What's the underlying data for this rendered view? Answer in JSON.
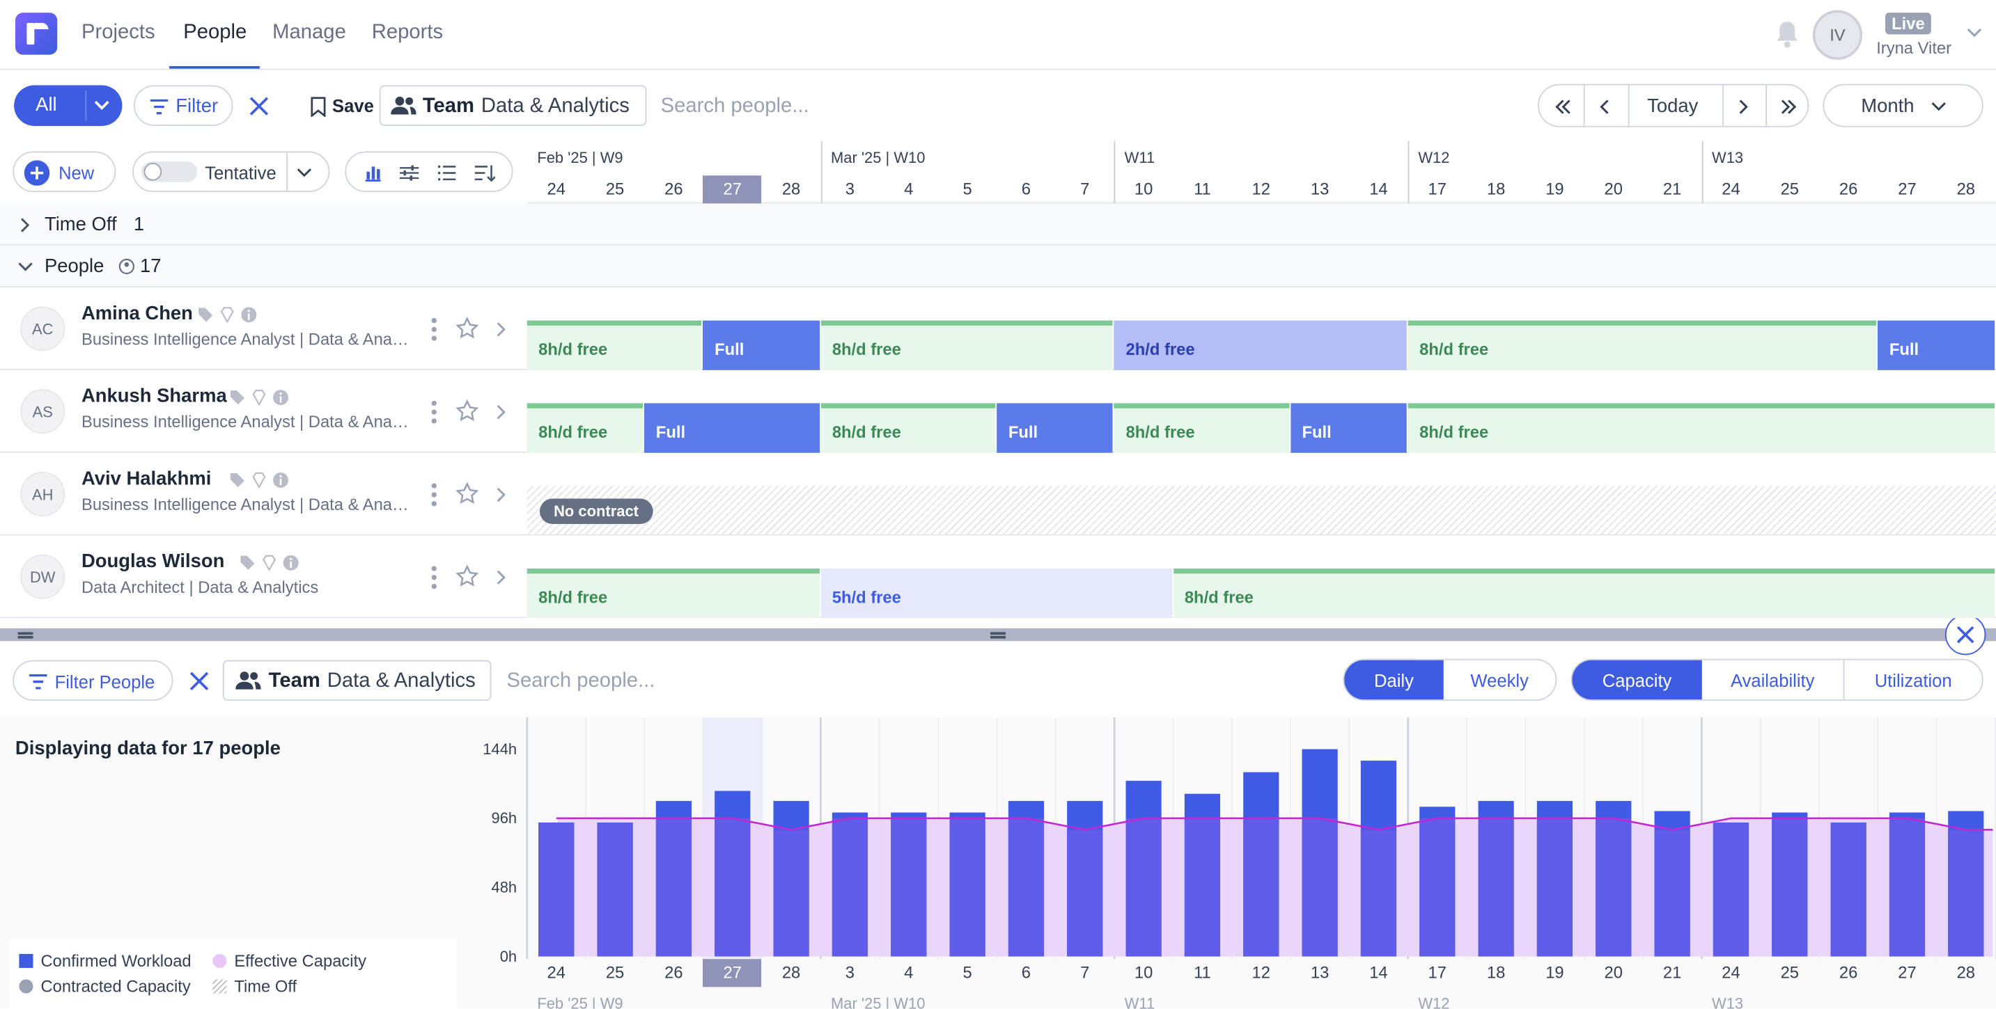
{
  "nav": {
    "projects": "Projects",
    "people": "People",
    "manage": "Manage",
    "reports": "Reports"
  },
  "user": {
    "initials": "IV",
    "status": "Live",
    "name": "Iryna Viter"
  },
  "toolbar": {
    "all": "All",
    "filter": "Filter",
    "save": "Save",
    "team_label": "Team",
    "team_value": "Data & Analytics",
    "search_placeholder": "Search people...",
    "today": "Today",
    "view": "Month"
  },
  "toolbar2": {
    "new": "New",
    "tentative": "Tentative"
  },
  "timeline": {
    "weeks": [
      "Feb '25 | W9",
      "Mar '25 | W10",
      "W11",
      "W12",
      "W13"
    ],
    "days": [
      "24",
      "25",
      "26",
      "27",
      "28",
      "3",
      "4",
      "5",
      "6",
      "7",
      "10",
      "11",
      "12",
      "13",
      "14",
      "17",
      "18",
      "19",
      "20",
      "21",
      "24",
      "25",
      "26",
      "27",
      "28"
    ],
    "today": "27"
  },
  "sections": {
    "time_off": "Time Off",
    "time_off_count": "1",
    "people": "People",
    "people_count": "17"
  },
  "people": [
    {
      "initials": "AC",
      "name": "Amina Chen",
      "role": "Business Intelligence Analyst | Data & Analytics",
      "blocks": [
        {
          "label": "8h/d free",
          "kind": "free"
        },
        {
          "label": "Full",
          "kind": "full"
        },
        {
          "label": "8h/d free",
          "kind": "free"
        },
        {
          "label": "2h/d free",
          "kind": "part"
        },
        {
          "label": "8h/d free",
          "kind": "free"
        },
        {
          "label": "Full",
          "kind": "full"
        }
      ]
    },
    {
      "initials": "AS",
      "name": "Ankush Sharma",
      "role": "Business Intelligence Analyst | Data & Analytics",
      "blocks": [
        {
          "label": "8h/d free",
          "kind": "free"
        },
        {
          "label": "Full",
          "kind": "full"
        },
        {
          "label": "8h/d free",
          "kind": "free"
        },
        {
          "label": "Full",
          "kind": "full"
        },
        {
          "label": "8h/d free",
          "kind": "free"
        },
        {
          "label": "Full",
          "kind": "full"
        },
        {
          "label": "8h/d free",
          "kind": "free"
        }
      ]
    },
    {
      "initials": "AH",
      "name": "Aviv Halakhmi",
      "role": "Business Intelligence Analyst | Data & Analytics",
      "no_contract": "No contract"
    },
    {
      "initials": "DW",
      "name": "Douglas Wilson",
      "role": "Data Architect | Data & Analytics",
      "blocks": [
        {
          "label": "8h/d free",
          "kind": "free"
        },
        {
          "label": "5h/d free",
          "kind": "light"
        },
        {
          "label": "8h/d free",
          "kind": "free"
        }
      ]
    }
  ],
  "bottom": {
    "filter_people": "Filter People",
    "team_label": "Team",
    "team_value": "Data & Analytics",
    "search_placeholder": "Search people...",
    "granularity": [
      "Daily",
      "Weekly"
    ],
    "granularity_active": "Daily",
    "metric": [
      "Capacity",
      "Availability",
      "Utilization"
    ],
    "metric_active": "Capacity",
    "displaying": "Displaying data for 17 people"
  },
  "legend": {
    "confirmed": "Confirmed Workload",
    "effective": "Effective Capacity",
    "contracted": "Contracted Capacity",
    "timeoff": "Time Off"
  },
  "colors": {
    "accent": "#3d5ce0",
    "bar": "#3f5be6",
    "effective_fill": "#ecd9fb",
    "capacity_line": "#c026d3",
    "free": "#e8f7ec"
  },
  "chart_data": {
    "type": "bar",
    "categories": [
      "24",
      "25",
      "26",
      "27",
      "28",
      "3",
      "4",
      "5",
      "6",
      "7",
      "10",
      "11",
      "12",
      "13",
      "14",
      "17",
      "18",
      "19",
      "20",
      "21",
      "24",
      "25",
      "26",
      "27",
      "28"
    ],
    "series": [
      {
        "name": "Confirmed Workload",
        "values": [
          93,
          93,
          108,
          115,
          108,
          100,
          100,
          100,
          108,
          108,
          122,
          113,
          128,
          144,
          136,
          104,
          108,
          108,
          108,
          101,
          93,
          100,
          93,
          100,
          101
        ]
      },
      {
        "name": "Contracted Capacity",
        "values": [
          96,
          96,
          96,
          96,
          88,
          96,
          96,
          96,
          96,
          88,
          96,
          96,
          96,
          96,
          88,
          96,
          96,
          96,
          96,
          88,
          96,
          96,
          96,
          96,
          88
        ]
      }
    ],
    "yticks": [
      "0h",
      "48h",
      "96h",
      "144h"
    ],
    "ylim": [
      0,
      144
    ]
  }
}
